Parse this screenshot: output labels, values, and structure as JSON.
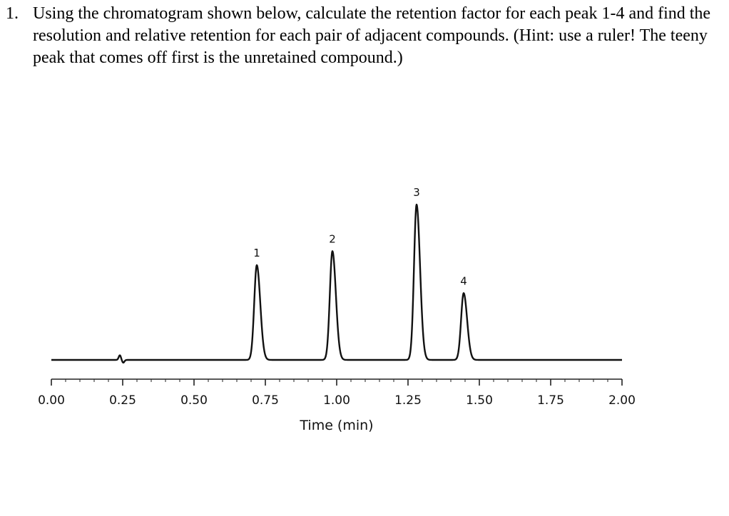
{
  "question": {
    "number": "1.",
    "text": "Using the chromatogram shown below, calculate the retention factor for each peak 1-4 and find the resolution and relative retention for each pair of adjacent compounds.  (Hint: use a ruler! The teeny peak that comes off first is the unretained compound.)"
  },
  "chart_data": {
    "type": "line",
    "title": "",
    "xlabel": "Time (min)",
    "ylabel": "",
    "xlim": [
      0,
      2.0
    ],
    "grid": false,
    "x_ticks": [
      "0.00",
      "0.25",
      "0.50",
      "0.75",
      "1.00",
      "1.25",
      "1.50",
      "1.75",
      "2.00"
    ],
    "x_tick_values": [
      0.0,
      0.25,
      0.5,
      0.75,
      1.0,
      1.25,
      1.5,
      1.75,
      2.0
    ],
    "baseline": 0,
    "unretained_peak": {
      "time": 0.24,
      "height": 0.03
    },
    "peaks": [
      {
        "label": "1",
        "time": 0.72,
        "height": 0.61,
        "width_sigma": 0.009
      },
      {
        "label": "2",
        "time": 0.985,
        "height": 0.7,
        "width_sigma": 0.009
      },
      {
        "label": "3",
        "time": 1.28,
        "height": 1.0,
        "width_sigma": 0.009
      },
      {
        "label": "4",
        "time": 1.445,
        "height": 0.43,
        "width_sigma": 0.009
      }
    ]
  }
}
